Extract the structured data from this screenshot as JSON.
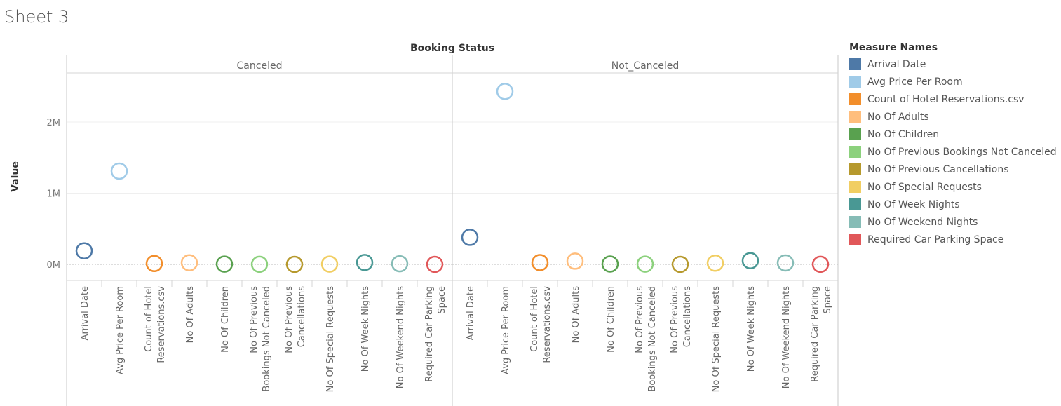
{
  "sheet_title": "Sheet 3",
  "chart_data": {
    "type": "scatter",
    "column_header": "Booking Status",
    "ylabel": "Value",
    "y_ticks": [
      "0M",
      "1M",
      "2M"
    ],
    "ylim": [
      -250000,
      2700000
    ],
    "panels": [
      "Canceled",
      "Not_Canceled"
    ],
    "categories": [
      "Arrival Date",
      "Avg Price Per Room",
      "Count of Hotel Reservations.csv",
      "No Of Adults",
      "No Of Children",
      "No Of Previous Bookings Not Canceled",
      "No Of Previous Cancellations",
      "No Of Special Requests",
      "No Of Week Nights",
      "No Of Weekend Nights",
      "Required Car Parking Space"
    ],
    "tick_labels": [
      [
        "Arrival Date"
      ],
      [
        "Avg Price Per Room"
      ],
      [
        "Count of Hotel",
        "Reservations.csv"
      ],
      [
        "No Of Adults"
      ],
      [
        "No Of Children"
      ],
      [
        "No Of Previous",
        "Bookings Not Canceled"
      ],
      [
        "No Of Previous",
        "Cancellations"
      ],
      [
        "No Of Special Requests"
      ],
      [
        "No Of Week Nights"
      ],
      [
        "No Of Weekend Nights"
      ],
      [
        "Required Car Parking",
        "Space"
      ]
    ],
    "colors": [
      "#4e79a7",
      "#a0cbe8",
      "#f28e2b",
      "#ffbe7d",
      "#59a14f",
      "#8cd17d",
      "#b6992d",
      "#f1ce63",
      "#499894",
      "#86bcb6",
      "#e15759"
    ],
    "series": [
      {
        "panel": "Canceled",
        "values": [
          190000,
          1310000,
          11900,
          22000,
          3500,
          1000,
          300,
          4000,
          26000,
          9000,
          200
        ]
      },
      {
        "panel": "Not_Canceled",
        "values": [
          380000,
          2430000,
          24400,
          45000,
          5000,
          4000,
          500,
          17000,
          52000,
          20000,
          1000
        ]
      }
    ],
    "legend": {
      "title": "Measure Names",
      "position": "right"
    }
  }
}
